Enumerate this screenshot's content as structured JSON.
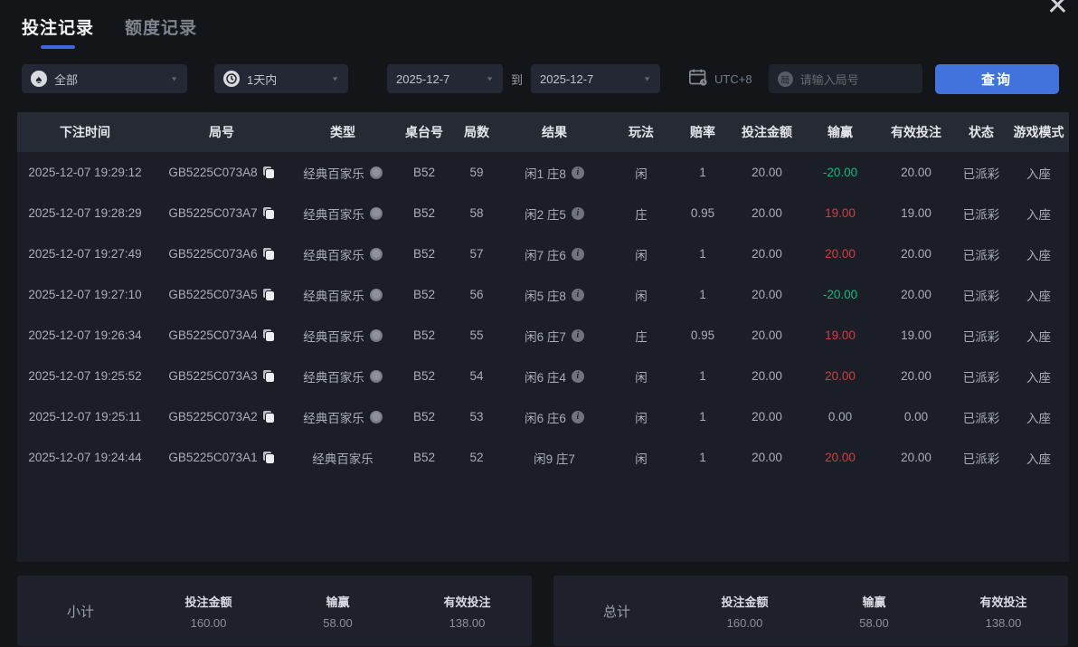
{
  "dialog": {
    "close_icon": "✕"
  },
  "tabs": [
    {
      "label": "投注记录",
      "active": true
    },
    {
      "label": "额度记录",
      "active": false
    }
  ],
  "filters": {
    "game_type": {
      "value": "全部",
      "icon": "spade-icon",
      "icon_glyph": "♠"
    },
    "time_range": {
      "value": "1天内",
      "icon": "clock-icon"
    },
    "date_from": "2025-12-7",
    "to_label": "到",
    "date_to": "2025-12-7",
    "timezone": "UTC+8",
    "round_input": {
      "placeholder": "请输入局号",
      "icon_char": "局",
      "value": ""
    },
    "query_button": "查询"
  },
  "table": {
    "headers": [
      "下注时间",
      "局号",
      "类型",
      "桌台号",
      "局数",
      "结果",
      "玩法",
      "赔率",
      "投注金额",
      "输赢",
      "有效投注",
      "状态",
      "游戏模式"
    ],
    "rows": [
      {
        "time": "2025-12-07 19:29:12",
        "round_id": "GB5225C073A8",
        "has_copy": true,
        "type": "经典百家乐",
        "has_type_icon": true,
        "table_no": "B52",
        "round_no": "59",
        "result": "闲1 庄8",
        "has_result_info": true,
        "play": "闲",
        "odds": "1",
        "bet": "20.00",
        "win_loss": "-20.00",
        "win_loss_color": "green",
        "valid_bet": "20.00",
        "status": "已派彩",
        "mode": "入座"
      },
      {
        "time": "2025-12-07 19:28:29",
        "round_id": "GB5225C073A7",
        "has_copy": true,
        "type": "经典百家乐",
        "has_type_icon": true,
        "table_no": "B52",
        "round_no": "58",
        "result": "闲2 庄5",
        "has_result_info": true,
        "play": "庄",
        "odds": "0.95",
        "bet": "20.00",
        "win_loss": "19.00",
        "win_loss_color": "red",
        "valid_bet": "19.00",
        "status": "已派彩",
        "mode": "入座"
      },
      {
        "time": "2025-12-07 19:27:49",
        "round_id": "GB5225C073A6",
        "has_copy": true,
        "type": "经典百家乐",
        "has_type_icon": true,
        "table_no": "B52",
        "round_no": "57",
        "result": "闲7 庄6",
        "has_result_info": true,
        "play": "闲",
        "odds": "1",
        "bet": "20.00",
        "win_loss": "20.00",
        "win_loss_color": "red",
        "valid_bet": "20.00",
        "status": "已派彩",
        "mode": "入座"
      },
      {
        "time": "2025-12-07 19:27:10",
        "round_id": "GB5225C073A5",
        "has_copy": true,
        "type": "经典百家乐",
        "has_type_icon": true,
        "table_no": "B52",
        "round_no": "56",
        "result": "闲5 庄8",
        "has_result_info": true,
        "play": "闲",
        "odds": "1",
        "bet": "20.00",
        "win_loss": "-20.00",
        "win_loss_color": "green",
        "valid_bet": "20.00",
        "status": "已派彩",
        "mode": "入座"
      },
      {
        "time": "2025-12-07 19:26:34",
        "round_id": "GB5225C073A4",
        "has_copy": true,
        "type": "经典百家乐",
        "has_type_icon": true,
        "table_no": "B52",
        "round_no": "55",
        "result": "闲6 庄7",
        "has_result_info": true,
        "play": "庄",
        "odds": "0.95",
        "bet": "20.00",
        "win_loss": "19.00",
        "win_loss_color": "red",
        "valid_bet": "19.00",
        "status": "已派彩",
        "mode": "入座"
      },
      {
        "time": "2025-12-07 19:25:52",
        "round_id": "GB5225C073A3",
        "has_copy": true,
        "type": "经典百家乐",
        "has_type_icon": true,
        "table_no": "B52",
        "round_no": "54",
        "result": "闲6 庄4",
        "has_result_info": true,
        "play": "闲",
        "odds": "1",
        "bet": "20.00",
        "win_loss": "20.00",
        "win_loss_color": "red",
        "valid_bet": "20.00",
        "status": "已派彩",
        "mode": "入座"
      },
      {
        "time": "2025-12-07 19:25:11",
        "round_id": "GB5225C073A2",
        "has_copy": true,
        "type": "经典百家乐",
        "has_type_icon": true,
        "table_no": "B52",
        "round_no": "53",
        "result": "闲6 庄6",
        "has_result_info": true,
        "play": "闲",
        "odds": "1",
        "bet": "20.00",
        "win_loss": "0.00",
        "win_loss_color": "plain",
        "valid_bet": "0.00",
        "status": "已派彩",
        "mode": "入座"
      },
      {
        "time": "2025-12-07 19:24:44",
        "round_id": "GB5225C073A1",
        "has_copy": true,
        "type": "经典百家乐",
        "has_type_icon": false,
        "table_no": "B52",
        "round_no": "52",
        "result": "闲9 庄7",
        "has_result_info": false,
        "play": "闲",
        "odds": "1",
        "bet": "20.00",
        "win_loss": "20.00",
        "win_loss_color": "red",
        "valid_bet": "20.00",
        "status": "已派彩",
        "mode": "入座"
      }
    ]
  },
  "summary": {
    "subtotal": {
      "label": "小计",
      "items": [
        {
          "label": "投注金额",
          "value": "160.00",
          "color": "plain"
        },
        {
          "label": "输赢",
          "value": "58.00",
          "color": "red"
        },
        {
          "label": "有效投注",
          "value": "138.00",
          "color": "plain"
        }
      ]
    },
    "total": {
      "label": "总计",
      "items": [
        {
          "label": "投注金额",
          "value": "160.00",
          "color": "plain"
        },
        {
          "label": "输赢",
          "value": "58.00",
          "color": "red"
        },
        {
          "label": "有效投注",
          "value": "138.00",
          "color": "plain"
        }
      ]
    }
  },
  "colors": {
    "accent_blue": "#4272dc",
    "win_red": "#cd4040",
    "loss_green": "#0cbd7e"
  }
}
